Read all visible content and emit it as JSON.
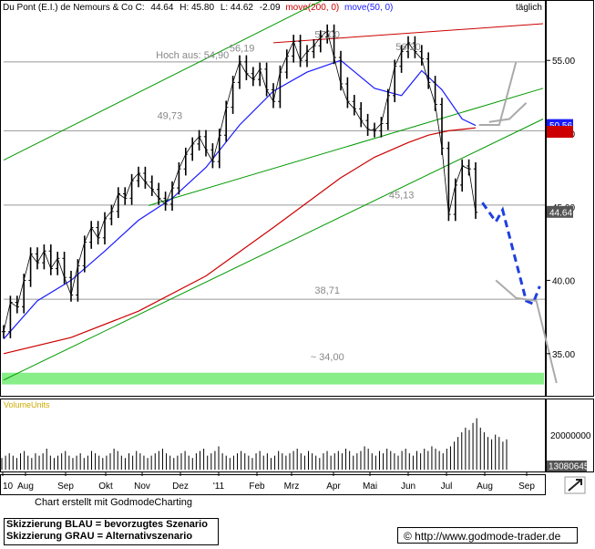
{
  "header": {
    "title": "Du Pont (E.I.) de Nemours & Co C:",
    "close": "44.64",
    "high": "H: 45.80",
    "low": "L: 44.62",
    "change": "-2.09",
    "ma200_label": "move(200, 0)",
    "ma50_label": "move(50, 0)",
    "period": "täglich"
  },
  "colors": {
    "ma200": "#cc0000",
    "ma50": "#1a1aff",
    "channel": "#009900",
    "resistance": "#cc0000",
    "scenario_blue": "#1e3fe0",
    "scenario_gray": "#aaaaaa",
    "ma200_tag_bg": "#cc0000",
    "ma50_tag_bg": "#1a1aff",
    "price_tag_bg": "#555555",
    "support_band": "#88ee88",
    "volume_label": "#ccaa00"
  },
  "chart_data": {
    "type": "line",
    "ylim": [
      32.5,
      58
    ],
    "y_ticks": [
      "55.00",
      "50.00",
      "45.00",
      "40.00",
      "35.00"
    ],
    "x_ticks": [
      "10",
      "Aug",
      "Sep",
      "Okt",
      "Nov",
      "Dez",
      "'11",
      "Feb",
      "Mrz",
      "Apr",
      "Mai",
      "Jun",
      "Jul",
      "Aug",
      "Sep"
    ],
    "price_series": [
      [
        0,
        36.5
      ],
      [
        2,
        38.5
      ],
      [
        4,
        38.2
      ],
      [
        6,
        40.0
      ],
      [
        8,
        41.8
      ],
      [
        10,
        41.2
      ],
      [
        12,
        42.0
      ],
      [
        14,
        40.8
      ],
      [
        16,
        41.5
      ],
      [
        18,
        40.2
      ],
      [
        20,
        39.0
      ],
      [
        22,
        41.0
      ],
      [
        24,
        42.6
      ],
      [
        26,
        43.6
      ],
      [
        28,
        42.9
      ],
      [
        30,
        44.2
      ],
      [
        32,
        44.7
      ],
      [
        34,
        45.9
      ],
      [
        36,
        45.6
      ],
      [
        38,
        46.8
      ],
      [
        40,
        47.3
      ],
      [
        42,
        46.7
      ],
      [
        44,
        46.2
      ],
      [
        46,
        45.6
      ],
      [
        48,
        45.2
      ],
      [
        50,
        46.3
      ],
      [
        52,
        47.6
      ],
      [
        54,
        48.6
      ],
      [
        56,
        49.3
      ],
      [
        58,
        49.8
      ],
      [
        60,
        48.9
      ],
      [
        62,
        48.1
      ],
      [
        64,
        49.9
      ],
      [
        66,
        51.8
      ],
      [
        68,
        53.5
      ],
      [
        70,
        54.9
      ],
      [
        72,
        54.1
      ],
      [
        74,
        53.7
      ],
      [
        76,
        54.4
      ],
      [
        78,
        53.0
      ],
      [
        80,
        52.2
      ],
      [
        82,
        54.2
      ],
      [
        84,
        55.3
      ],
      [
        86,
        56.3
      ],
      [
        88,
        55.0
      ],
      [
        90,
        55.6
      ],
      [
        92,
        56.0
      ],
      [
        94,
        56.6
      ],
      [
        96,
        57.0
      ],
      [
        98,
        55.2
      ],
      [
        100,
        53.4
      ],
      [
        102,
        52.2
      ],
      [
        104,
        51.7
      ],
      [
        106,
        50.9
      ],
      [
        108,
        50.3
      ],
      [
        110,
        50.2
      ],
      [
        112,
        50.7
      ],
      [
        114,
        52.6
      ],
      [
        116,
        54.6
      ],
      [
        118,
        55.6
      ],
      [
        120,
        56.2
      ],
      [
        122,
        55.6
      ],
      [
        124,
        55.1
      ],
      [
        126,
        53.5
      ],
      [
        128,
        52.0
      ],
      [
        130,
        49.0
      ],
      [
        132,
        44.5
      ],
      [
        134,
        46.5
      ],
      [
        136,
        47.8
      ],
      [
        138,
        47.6
      ],
      [
        140,
        44.64
      ]
    ],
    "ma50_series": [
      [
        0,
        36.0
      ],
      [
        10,
        38.6
      ],
      [
        20,
        40.0
      ],
      [
        30,
        42.0
      ],
      [
        40,
        44.1
      ],
      [
        50,
        45.6
      ],
      [
        60,
        47.7
      ],
      [
        70,
        50.6
      ],
      [
        80,
        52.9
      ],
      [
        90,
        54.2
      ],
      [
        100,
        55.0
      ],
      [
        110,
        53.1
      ],
      [
        118,
        52.6
      ],
      [
        124,
        54.3
      ],
      [
        130,
        53.0
      ],
      [
        136,
        51.0
      ],
      [
        140,
        50.56
      ]
    ],
    "ma200_series": [
      [
        0,
        35.0
      ],
      [
        20,
        36.1
      ],
      [
        40,
        37.9
      ],
      [
        60,
        40.3
      ],
      [
        80,
        43.6
      ],
      [
        100,
        47.0
      ],
      [
        110,
        48.4
      ],
      [
        120,
        49.4
      ],
      [
        126,
        49.9
      ],
      [
        132,
        50.2
      ],
      [
        140,
        50.4
      ]
    ],
    "price_labels": [
      "56,19",
      "57,00",
      "56,20",
      "49,73",
      "45,13",
      "38,71",
      "Hoch aus: 54,90",
      "~ 34,00"
    ],
    "horizontal_levels": [
      54.9,
      50.2,
      45.13,
      38.71
    ],
    "resistance_line": [
      [
        80,
        56.2
      ],
      [
        160,
        57.5
      ]
    ],
    "channel_lines": [
      [
        [
          0,
          48.2
        ],
        [
          98,
          59.5
        ]
      ],
      [
        [
          43,
          45.1
        ],
        [
          160,
          53.1
        ]
      ],
      [
        [
          0,
          33.2
        ],
        [
          160,
          51.0
        ]
      ]
    ],
    "scenario_blue": [
      [
        142,
        45.3
      ],
      [
        146,
        44.0
      ],
      [
        148,
        44.8
      ],
      [
        155,
        38.6
      ],
      [
        157,
        38.4
      ],
      [
        159,
        39.6
      ]
    ],
    "scenario_gray": [
      [
        141,
        50.6
      ],
      [
        147,
        50.6
      ],
      [
        152,
        54.9
      ],
      [
        144,
        50.8
      ],
      [
        150,
        51.0
      ],
      [
        155,
        52.1
      ],
      [
        146,
        40.0
      ],
      [
        152,
        38.8
      ],
      [
        158,
        38.6
      ],
      [
        164,
        33.0
      ]
    ],
    "tags": [
      {
        "value": 50.56,
        "label": "50.56",
        "kind": "ma50"
      },
      {
        "value": 50.1,
        "label": "",
        "kind": "ma200"
      },
      {
        "value": 44.64,
        "label": "44.64",
        "kind": "price"
      }
    ],
    "volume": {
      "label": "VolumeUnits",
      "y_ticks": [
        "20000000"
      ],
      "current": "13080645",
      "series": [
        5,
        6,
        7,
        6,
        5,
        7,
        8,
        6,
        5,
        7,
        6,
        7,
        9,
        6,
        5,
        6,
        7,
        8,
        6,
        5,
        6,
        7,
        5,
        6,
        8,
        7,
        6,
        5,
        6,
        7,
        9,
        8,
        6,
        5,
        7,
        6,
        8,
        7,
        6,
        5,
        6,
        7,
        8,
        9,
        7,
        6,
        5,
        6,
        7,
        8,
        6,
        5,
        7,
        8,
        9,
        6,
        7,
        8,
        10,
        7,
        6,
        5,
        6,
        7,
        8,
        7,
        6,
        5,
        7,
        8,
        6,
        7,
        5,
        6,
        8,
        7,
        6,
        7,
        8,
        9,
        7,
        6,
        8,
        7,
        6,
        5,
        7,
        8,
        6,
        7,
        8,
        7,
        9,
        8,
        6,
        7,
        8,
        10,
        9,
        7,
        6,
        8,
        7,
        9,
        8,
        7,
        6,
        8,
        9,
        7,
        6,
        8,
        7,
        9,
        8,
        10,
        9,
        8,
        7,
        9,
        10,
        12,
        14,
        16,
        18,
        17,
        20,
        22,
        18,
        16,
        14,
        13,
        15,
        14,
        12,
        13
      ]
    }
  },
  "footer": {
    "credit": "Chart erstellt mit GodmodeCharting",
    "legend_blue": "Skizzierung BLAU = bevorzugtes Szenario",
    "legend_gray": "Skizzierung GRAU = Alternativszenario",
    "url": "© http://www.godmode-trader.de"
  }
}
